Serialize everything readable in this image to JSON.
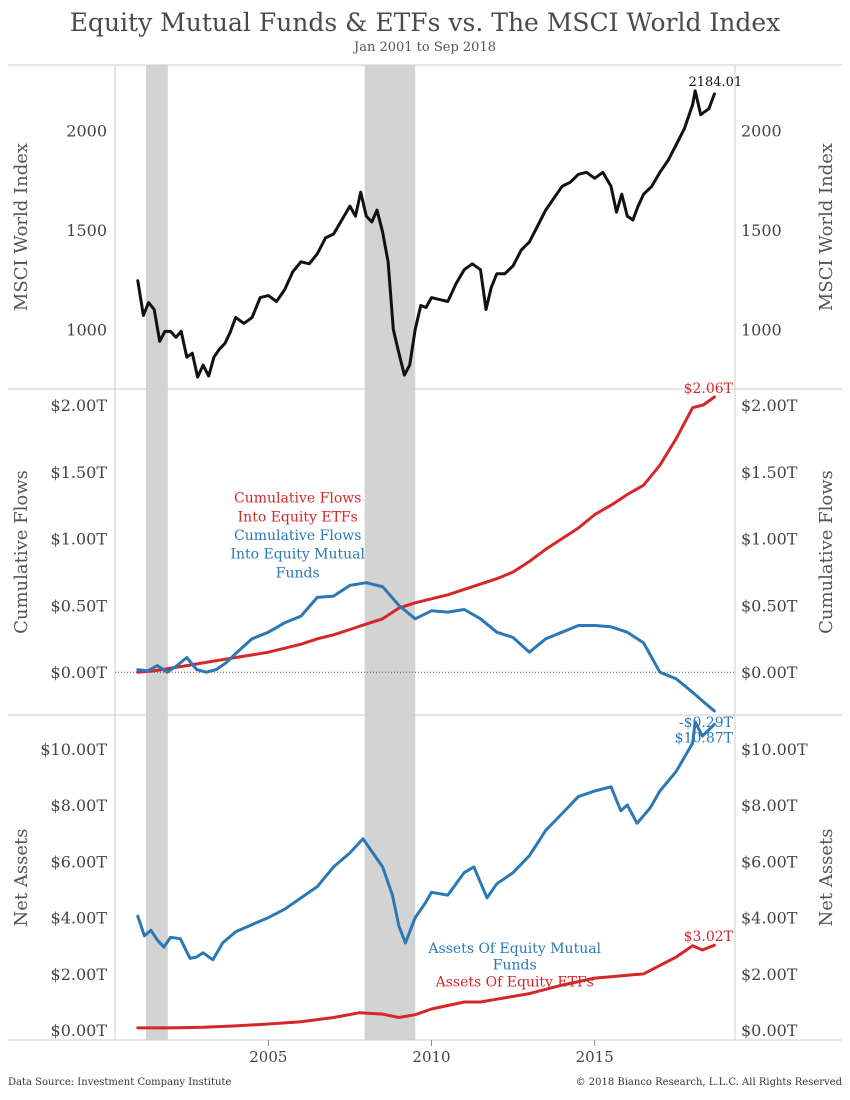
{
  "header": {
    "title": "Equity Mutual Funds & ETFs vs. The MSCI World Index",
    "subtitle": "Jan 2001 to Sep 2018"
  },
  "footer": {
    "source": "Data Source: Investment Company Institute",
    "copyright": "© 2018 Bianco Research, L.L.C. All Rights Reserved"
  },
  "colors": {
    "msci": "#111111",
    "etf": "#d62728",
    "mutual_fund": "#2a78b5",
    "recession_shade": "#d3d3d3",
    "grid": "#cccccc"
  },
  "chart_data": [
    {
      "type": "line",
      "ylabel": "MSCI World Index",
      "ylim": [
        700,
        2330
      ],
      "yticks": [
        1000,
        1500,
        2000
      ],
      "ytick_labels": [
        "1000",
        "1500",
        "2000"
      ],
      "recessions": [
        [
          2001.25,
          2001.92
        ],
        [
          2007.95,
          2009.5
        ]
      ],
      "end_label": "2184.01",
      "series": [
        {
          "color_key": "msci",
          "x": [
            2001.0,
            2001.17,
            2001.33,
            2001.5,
            2001.67,
            2001.83,
            2002.0,
            2002.17,
            2002.33,
            2002.5,
            2002.67,
            2002.83,
            2003.0,
            2003.17,
            2003.33,
            2003.5,
            2003.67,
            2003.83,
            2004.0,
            2004.25,
            2004.5,
            2004.75,
            2005.0,
            2005.25,
            2005.5,
            2005.75,
            2006.0,
            2006.25,
            2006.5,
            2006.75,
            2007.0,
            2007.25,
            2007.5,
            2007.67,
            2007.83,
            2008.0,
            2008.17,
            2008.33,
            2008.5,
            2008.67,
            2008.83,
            2009.0,
            2009.17,
            2009.33,
            2009.5,
            2009.67,
            2009.83,
            2010.0,
            2010.25,
            2010.5,
            2010.75,
            2011.0,
            2011.25,
            2011.5,
            2011.67,
            2011.83,
            2012.0,
            2012.25,
            2012.5,
            2012.75,
            2013.0,
            2013.25,
            2013.5,
            2013.75,
            2014.0,
            2014.25,
            2014.5,
            2014.75,
            2015.0,
            2015.25,
            2015.5,
            2015.67,
            2015.83,
            2016.0,
            2016.17,
            2016.33,
            2016.5,
            2016.75,
            2017.0,
            2017.25,
            2017.5,
            2017.75,
            2018.0,
            2018.08,
            2018.25,
            2018.5,
            2018.67
          ],
          "y": [
            1245,
            1070,
            1135,
            1100,
            940,
            990,
            990,
            960,
            990,
            860,
            880,
            760,
            820,
            765,
            860,
            900,
            930,
            985,
            1060,
            1030,
            1060,
            1160,
            1170,
            1140,
            1200,
            1290,
            1340,
            1330,
            1380,
            1460,
            1480,
            1550,
            1620,
            1570,
            1690,
            1570,
            1540,
            1600,
            1490,
            1340,
            1000,
            880,
            770,
            820,
            1000,
            1120,
            1110,
            1160,
            1150,
            1140,
            1230,
            1300,
            1330,
            1300,
            1100,
            1210,
            1280,
            1280,
            1320,
            1400,
            1440,
            1520,
            1600,
            1660,
            1720,
            1740,
            1780,
            1790,
            1760,
            1790,
            1720,
            1590,
            1680,
            1570,
            1550,
            1620,
            1680,
            1720,
            1790,
            1850,
            1930,
            2010,
            2130,
            2200,
            2080,
            2110,
            2184.01
          ]
        }
      ]
    },
    {
      "type": "line",
      "ylabel": "Cumulative Flows",
      "ylim": [
        -0.32,
        2.12
      ],
      "yticks": [
        0,
        0.5,
        1.0,
        1.5,
        2.0
      ],
      "ytick_labels": [
        "$0.00T",
        "$0.50T",
        "$1.00T",
        "$1.50T",
        "$2.00T"
      ],
      "recessions": [
        [
          2001.25,
          2001.92
        ],
        [
          2007.95,
          2009.5
        ]
      ],
      "annotations": [
        {
          "text": "Cumulative Flows",
          "color_key": "etf",
          "x": 2005.9,
          "y": 1.27
        },
        {
          "text": "Into Equity ETFs",
          "color_key": "etf",
          "x": 2005.9,
          "y": 1.13
        },
        {
          "text": "Cumulative Flows",
          "color_key": "mutual_fund",
          "x": 2005.9,
          "y": 0.99
        },
        {
          "text": "Into Equity Mutual",
          "color_key": "mutual_fund",
          "x": 2005.9,
          "y": 0.85
        },
        {
          "text": "Funds",
          "color_key": "mutual_fund",
          "x": 2005.9,
          "y": 0.71
        }
      ],
      "end_labels": [
        {
          "text": "$2.06T",
          "color_key": "etf"
        },
        {
          "text": "-$0.29T",
          "color_key": "mutual_fund"
        }
      ],
      "series": [
        {
          "color_key": "etf",
          "x": [
            2001.0,
            2001.5,
            2002.0,
            2002.5,
            2003.0,
            2003.5,
            2004.0,
            2004.5,
            2005.0,
            2005.5,
            2006.0,
            2006.5,
            2007.0,
            2007.5,
            2008.0,
            2008.5,
            2009.0,
            2009.5,
            2010.0,
            2010.5,
            2011.0,
            2011.5,
            2012.0,
            2012.5,
            2013.0,
            2013.5,
            2014.0,
            2014.5,
            2015.0,
            2015.5,
            2016.0,
            2016.5,
            2017.0,
            2017.5,
            2018.0,
            2018.33,
            2018.67
          ],
          "y": [
            0.0,
            0.01,
            0.03,
            0.05,
            0.07,
            0.09,
            0.11,
            0.13,
            0.15,
            0.18,
            0.21,
            0.25,
            0.28,
            0.32,
            0.36,
            0.4,
            0.48,
            0.52,
            0.55,
            0.58,
            0.62,
            0.66,
            0.7,
            0.75,
            0.83,
            0.92,
            1.0,
            1.08,
            1.18,
            1.25,
            1.33,
            1.4,
            1.55,
            1.75,
            1.98,
            2.0,
            2.06
          ]
        },
        {
          "color_key": "mutual_fund",
          "x": [
            2001.0,
            2001.3,
            2001.6,
            2001.9,
            2002.2,
            2002.5,
            2002.8,
            2003.1,
            2003.4,
            2003.7,
            2004.0,
            2004.5,
            2005.0,
            2005.5,
            2006.0,
            2006.5,
            2007.0,
            2007.5,
            2008.0,
            2008.5,
            2009.0,
            2009.5,
            2010.0,
            2010.5,
            2011.0,
            2011.5,
            2012.0,
            2012.5,
            2013.0,
            2013.5,
            2014.0,
            2014.5,
            2015.0,
            2015.5,
            2016.0,
            2016.5,
            2017.0,
            2017.5,
            2018.0,
            2018.33,
            2018.67
          ],
          "y": [
            0.02,
            0.01,
            0.05,
            0.0,
            0.05,
            0.11,
            0.02,
            0.0,
            0.02,
            0.07,
            0.14,
            0.25,
            0.3,
            0.37,
            0.42,
            0.56,
            0.57,
            0.65,
            0.67,
            0.64,
            0.5,
            0.4,
            0.46,
            0.45,
            0.47,
            0.4,
            0.3,
            0.26,
            0.15,
            0.25,
            0.3,
            0.35,
            0.35,
            0.34,
            0.3,
            0.22,
            0.0,
            -0.05,
            -0.15,
            -0.22,
            -0.29
          ]
        }
      ]
    },
    {
      "type": "line",
      "ylabel": "Net Assets",
      "ylim": [
        -0.35,
        11.2
      ],
      "yticks": [
        0,
        2,
        4,
        6,
        8,
        10
      ],
      "ytick_labels": [
        "$0.00T",
        "$2.00T",
        "$4.00T",
        "$6.00T",
        "$8.00T",
        "$10.00T"
      ],
      "recessions": [
        [
          2001.25,
          2001.92
        ],
        [
          2007.95,
          2009.5
        ]
      ],
      "annotations": [
        {
          "text": "Assets Of Equity Mutual",
          "color_key": "mutual_fund",
          "x": 2012.55,
          "y": 2.75
        },
        {
          "text": "Funds",
          "color_key": "mutual_fund",
          "x": 2012.55,
          "y": 2.15
        },
        {
          "text": "Assets Of Equity ETFs",
          "color_key": "etf",
          "x": 2012.55,
          "y": 1.55
        }
      ],
      "end_labels": [
        {
          "text": "$10.87T",
          "color_key": "mutual_fund"
        },
        {
          "text": "$3.02T",
          "color_key": "etf"
        }
      ],
      "series": [
        {
          "color_key": "mutual_fund",
          "x": [
            2001.0,
            2001.2,
            2001.4,
            2001.6,
            2001.8,
            2002.0,
            2002.3,
            2002.6,
            2002.8,
            2003.0,
            2003.3,
            2003.6,
            2004.0,
            2004.5,
            2005.0,
            2005.5,
            2006.0,
            2006.5,
            2007.0,
            2007.5,
            2007.9,
            2008.2,
            2008.5,
            2008.8,
            2009.0,
            2009.2,
            2009.5,
            2009.8,
            2010.0,
            2010.5,
            2011.0,
            2011.3,
            2011.7,
            2012.0,
            2012.5,
            2013.0,
            2013.5,
            2014.0,
            2014.5,
            2015.0,
            2015.5,
            2015.8,
            2016.0,
            2016.3,
            2016.7,
            2017.0,
            2017.5,
            2018.0,
            2018.08,
            2018.3,
            2018.67
          ],
          "y": [
            4.05,
            3.35,
            3.55,
            3.2,
            2.95,
            3.3,
            3.25,
            2.55,
            2.6,
            2.75,
            2.5,
            3.1,
            3.5,
            3.75,
            4.0,
            4.3,
            4.7,
            5.1,
            5.8,
            6.3,
            6.8,
            6.3,
            5.8,
            4.8,
            3.7,
            3.1,
            4.0,
            4.5,
            4.9,
            4.8,
            5.6,
            5.8,
            4.7,
            5.2,
            5.6,
            6.2,
            7.1,
            7.7,
            8.3,
            8.5,
            8.65,
            7.8,
            8.0,
            7.35,
            7.9,
            8.5,
            9.2,
            10.2,
            10.95,
            10.45,
            10.87
          ]
        },
        {
          "color_key": "etf",
          "x": [
            2001.0,
            2002.0,
            2003.0,
            2004.0,
            2005.0,
            2006.0,
            2007.0,
            2007.8,
            2008.5,
            2009.0,
            2009.5,
            2010.0,
            2011.0,
            2011.5,
            2012.0,
            2013.0,
            2014.0,
            2015.0,
            2015.5,
            2016.0,
            2016.5,
            2017.0,
            2017.5,
            2018.0,
            2018.3,
            2018.67
          ],
          "y": [
            0.08,
            0.08,
            0.1,
            0.15,
            0.22,
            0.3,
            0.45,
            0.62,
            0.57,
            0.45,
            0.55,
            0.75,
            1.0,
            1.0,
            1.1,
            1.3,
            1.6,
            1.85,
            1.9,
            1.95,
            2.0,
            2.3,
            2.6,
            3.0,
            2.85,
            3.02
          ]
        }
      ]
    }
  ],
  "x_axis": {
    "range": [
      2000.3,
      2019.3
    ],
    "ticks": [
      2005,
      2010,
      2015
    ],
    "tick_labels": [
      "2005",
      "2010",
      "2015"
    ]
  }
}
